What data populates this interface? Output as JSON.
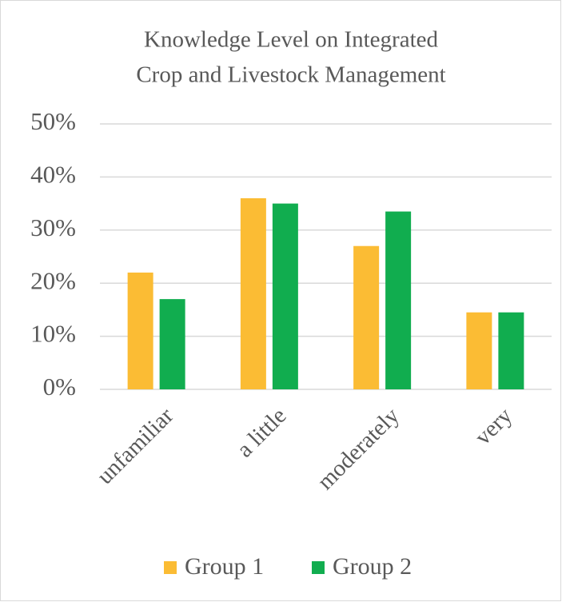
{
  "chart_data": {
    "type": "bar",
    "title": [
      "Knowledge Level on Integrated",
      "Crop and Livestock Management"
    ],
    "categories": [
      "unfamiliar",
      "a little",
      "moderately",
      "very"
    ],
    "series": [
      {
        "name": "Group 1",
        "color": "#FBBC34",
        "values": [
          22,
          36,
          27,
          14.5
        ]
      },
      {
        "name": "Group 2",
        "color": "#11AD4F",
        "values": [
          17,
          35,
          33.5,
          14.5
        ]
      }
    ],
    "ylim": [
      0,
      50
    ],
    "yticks": [
      {
        "value": 0,
        "label": "0%"
      },
      {
        "value": 10,
        "label": "10%"
      },
      {
        "value": 20,
        "label": "20%"
      },
      {
        "value": 30,
        "label": "30%"
      },
      {
        "value": 40,
        "label": "40%"
      },
      {
        "value": 50,
        "label": "50%"
      }
    ],
    "grid": true,
    "legend": "bottom"
  }
}
